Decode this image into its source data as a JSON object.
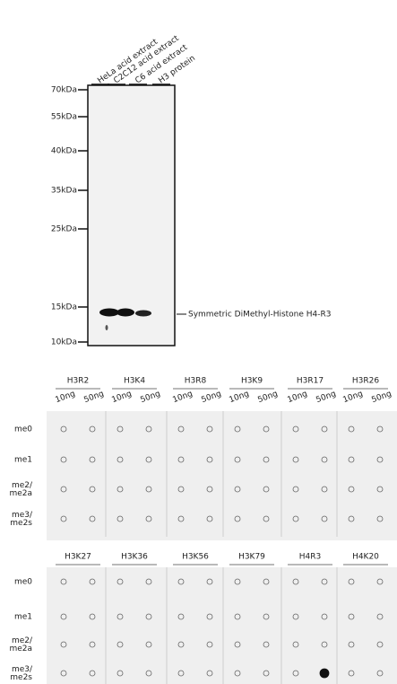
{
  "western_blot": {
    "lanes": [
      "HeLa acid extract",
      "C2C12 acid extract",
      "C6 acid extract",
      "H3 protein"
    ],
    "markers": [
      "70kDa",
      "55kDa",
      "40kDa",
      "35kDa",
      "25kDa",
      "15kDa",
      "10kDa"
    ],
    "band_label": "Symmetric DiMethyl-Histone H4-R3"
  },
  "dot_blots": [
    {
      "groups": [
        "H3R2",
        "H3K4",
        "H3R8",
        "H3K9",
        "H3R17",
        "H3R26"
      ],
      "amounts": [
        "10ng",
        "50ng"
      ],
      "rows": [
        [
          "me0"
        ],
        [
          "me1"
        ],
        [
          "me2/",
          "me2a"
        ],
        [
          "me3/",
          "me2s"
        ]
      ]
    },
    {
      "groups": [
        "H3K27",
        "H3K36",
        "H3K56",
        "H3K79",
        "H4R3",
        "H4K20"
      ],
      "rows": [
        [
          "me0"
        ],
        [
          "me1"
        ],
        [
          "me2/",
          "me2a"
        ],
        [
          "me3/",
          "me2s"
        ]
      ]
    }
  ]
}
